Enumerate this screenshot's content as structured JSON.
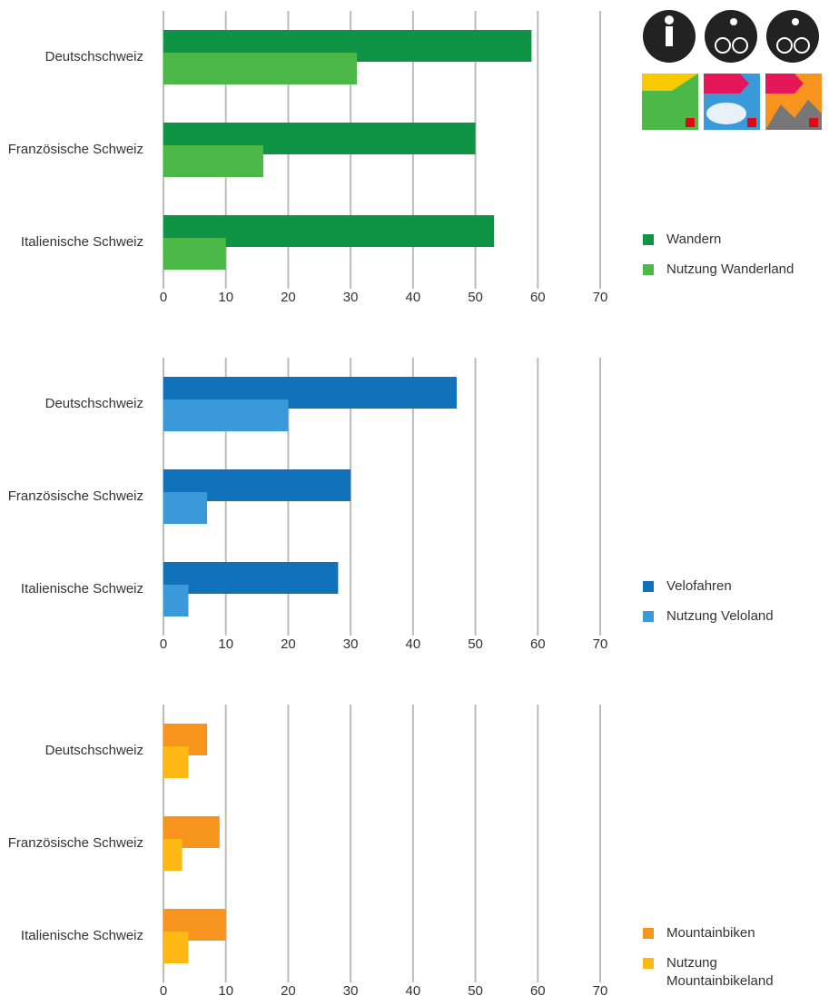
{
  "chart_data": [
    {
      "type": "bar",
      "orientation": "horizontal",
      "categories": [
        "Deutschschweiz",
        "Französische Schweiz",
        "Italienische Schweiz"
      ],
      "series": [
        {
          "name": "Wandern",
          "color": "#0f9445",
          "values": [
            59,
            50,
            53
          ]
        },
        {
          "name": "Nutzung Wanderland",
          "color": "#4cb848",
          "values": [
            31,
            16,
            10
          ]
        }
      ],
      "xlim": [
        0,
        70
      ],
      "xticks": [
        0,
        10,
        20,
        30,
        40,
        50,
        60,
        70
      ],
      "grid": true,
      "legend": "right"
    },
    {
      "type": "bar",
      "orientation": "horizontal",
      "categories": [
        "Deutschschweiz",
        "Französische Schweiz",
        "Italienische Schweiz"
      ],
      "series": [
        {
          "name": "Velofahren",
          "color": "#1072ba",
          "values": [
            47,
            30,
            28
          ]
        },
        {
          "name": "Nutzung Veloland",
          "color": "#3a9ad9",
          "values": [
            20,
            7,
            4
          ]
        }
      ],
      "xlim": [
        0,
        70
      ],
      "xticks": [
        0,
        10,
        20,
        30,
        40,
        50,
        60,
        70
      ],
      "grid": true,
      "legend": "right"
    },
    {
      "type": "bar",
      "orientation": "horizontal",
      "categories": [
        "Deutschschweiz",
        "Französische Schweiz",
        "Italienische Schweiz"
      ],
      "series": [
        {
          "name": "Mountainbiken",
          "color": "#f7941d",
          "values": [
            7,
            9,
            10
          ]
        },
        {
          "name": "Nutzung Mountainbikeland",
          "color": "#fdb813",
          "values": [
            4,
            3,
            4
          ]
        }
      ],
      "xlim": [
        0,
        70
      ],
      "xticks": [
        0,
        10,
        20,
        30,
        40,
        50,
        60,
        70
      ],
      "grid": true,
      "legend": "right"
    }
  ]
}
